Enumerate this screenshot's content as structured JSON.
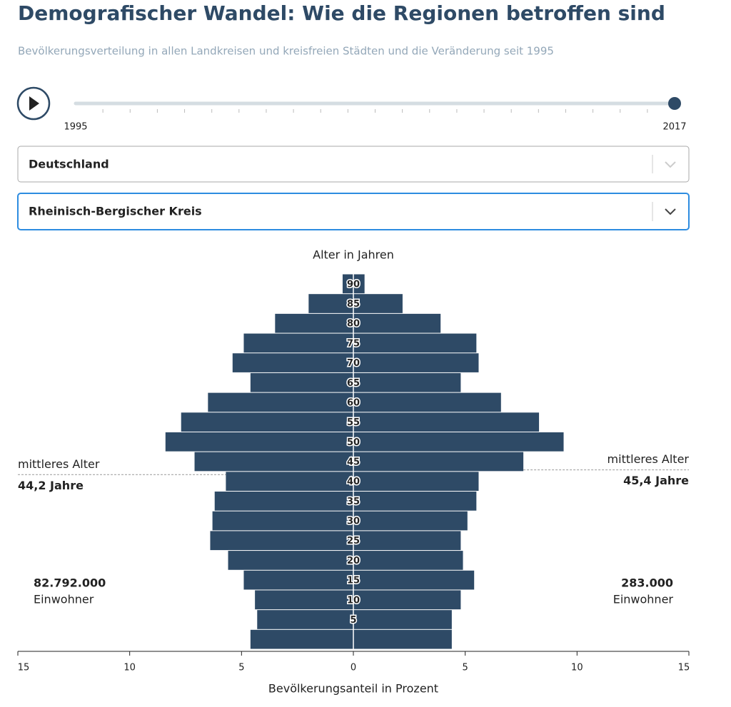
{
  "header": {
    "title": "Demografischer Wandel: Wie die Regionen betroffen sind",
    "subtitle": "Bevölkerungsverteilung in allen Landkreisen und kreisfreien Städten und die Veränderung seit 1995"
  },
  "slider": {
    "range": [
      1995,
      2017
    ],
    "value": 2017
  },
  "chart_data": {
    "type": "pyramid",
    "ylabel": "Alter in Jahren",
    "xlabel": "Bevölkerungsanteil in Prozent",
    "annotation_label": "mittleres Alter",
    "population_unit": "Einwohner",
    "categories": [
      null,
      "5",
      "10",
      "15",
      "20",
      "25",
      "30",
      "35",
      "40",
      "45",
      "50",
      "55",
      "60",
      "65",
      "70",
      "75",
      "80",
      "85",
      "90"
    ],
    "ylim": [
      0,
      95
    ],
    "xlim": [
      -15,
      15
    ],
    "xticks": [
      {
        "value": -15,
        "label": "15"
      },
      {
        "value": -10,
        "label": "10"
      },
      {
        "value": -5,
        "label": "5"
      },
      0,
      5,
      10,
      15
    ],
    "series": [
      {
        "name": "Deutschland",
        "color": "#2e4a66",
        "values": [
          4.6,
          4.3,
          4.4,
          4.9,
          5.6,
          6.4,
          6.3,
          6.2,
          5.7,
          7.1,
          8.4,
          7.7,
          6.5,
          4.6,
          5.4,
          4.9,
          3.5,
          2.0,
          0.48
        ],
        "median_age": {
          "value": 44.2,
          "label": "44,2 Jahre"
        },
        "population": {
          "value": 82792000,
          "label": "82.792.000"
        }
      },
      {
        "name": "Rheinisch-Bergischer Kreis",
        "color": "#2e4a66",
        "values": [
          4.4,
          4.4,
          4.8,
          5.4,
          4.9,
          4.8,
          5.1,
          5.5,
          5.6,
          7.6,
          9.4,
          8.3,
          6.6,
          4.8,
          5.6,
          5.5,
          3.9,
          2.2,
          0.5
        ],
        "median_age": {
          "value": 45.4,
          "label": "45,4 Jahre"
        },
        "population": {
          "value": 283000,
          "label": "283.000"
        }
      }
    ]
  }
}
